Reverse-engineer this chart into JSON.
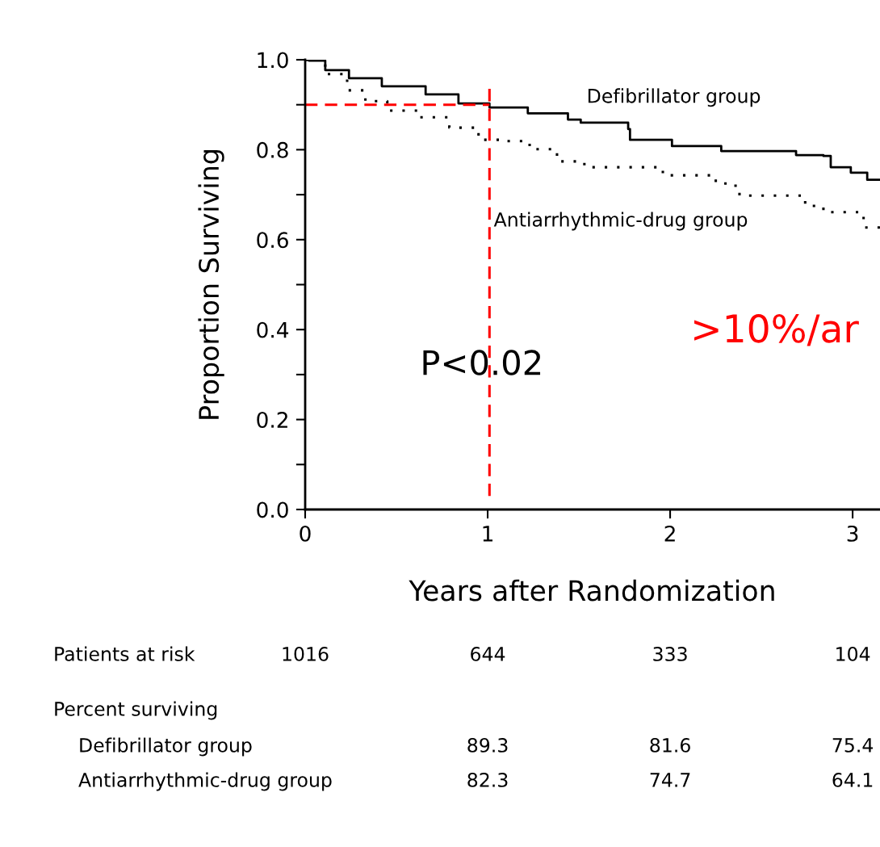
{
  "chart_data": {
    "type": "step",
    "xlabel": "Years after Randomization",
    "ylabel": "Proportion Surviving",
    "xlim": [
      0,
      3.15
    ],
    "xticks": [
      0,
      1,
      2,
      3
    ],
    "ylim": [
      0,
      1.0
    ],
    "yticks": [
      {
        "value": 0,
        "label": "0.0"
      },
      {
        "value": 0.1,
        "label": null
      },
      0.2,
      {
        "value": 0.3,
        "label": null
      },
      0.4,
      {
        "value": 0.5,
        "label": null
      },
      0.6,
      {
        "value": 0.7,
        "label": null
      },
      0.8,
      {
        "value": 0.9,
        "label": null
      },
      {
        "value": 1.0,
        "label": "1.0"
      }
    ],
    "grid": false,
    "marker": "none",
    "series": [
      {
        "name": "Defibrillator group",
        "color": "#000000",
        "line_style": "solid",
        "x": [
          0,
          0.02,
          0.11,
          0.24,
          0.42,
          0.66,
          0.84,
          1.01,
          1.22,
          1.44,
          1.51,
          1.77,
          1.78,
          2.01,
          2.28,
          2.69,
          2.84,
          2.88,
          2.99,
          3.08,
          3.15
        ],
        "values": [
          1.0,
          0.998,
          0.977,
          0.959,
          0.941,
          0.923,
          0.903,
          0.894,
          0.881,
          0.867,
          0.86,
          0.846,
          0.822,
          0.808,
          0.797,
          0.788,
          0.786,
          0.761,
          0.749,
          0.733,
          0.733
        ]
      },
      {
        "name": "Antiarrhythmic-drug group",
        "color": "#000000",
        "line_style": "dotted",
        "x": [
          0,
          0.11,
          0.23,
          0.33,
          0.45,
          0.63,
          0.79,
          0.95,
          1.08,
          1.23,
          1.38,
          1.53,
          1.81,
          1.96,
          2.25,
          2.34,
          2.38,
          2.74,
          2.84,
          3.06,
          3.15
        ],
        "values": [
          1.0,
          0.968,
          0.932,
          0.908,
          0.887,
          0.872,
          0.849,
          0.822,
          0.819,
          0.801,
          0.774,
          0.761,
          0.761,
          0.743,
          0.725,
          0.72,
          0.698,
          0.675,
          0.661,
          0.627,
          0.616
        ]
      }
    ],
    "ref_lines": [
      {
        "axis": "x",
        "value": 1.01,
        "label": null,
        "color": "#ff0000",
        "line_style": "dashed"
      },
      {
        "axis": "y",
        "value": 0.9,
        "label": null,
        "color": "#ff0000",
        "line_style": "dashed"
      }
    ],
    "annotations": [
      "P<0.02",
      ">10%/ar",
      "Patients at risk",
      "1016",
      "644",
      "333",
      "104",
      "Percent surviving",
      "Defibrillator group",
      "89.3",
      "81.6",
      "75.4",
      "Antiarrhythmic-drug group",
      "82.3",
      "74.7",
      "64.1"
    ]
  }
}
